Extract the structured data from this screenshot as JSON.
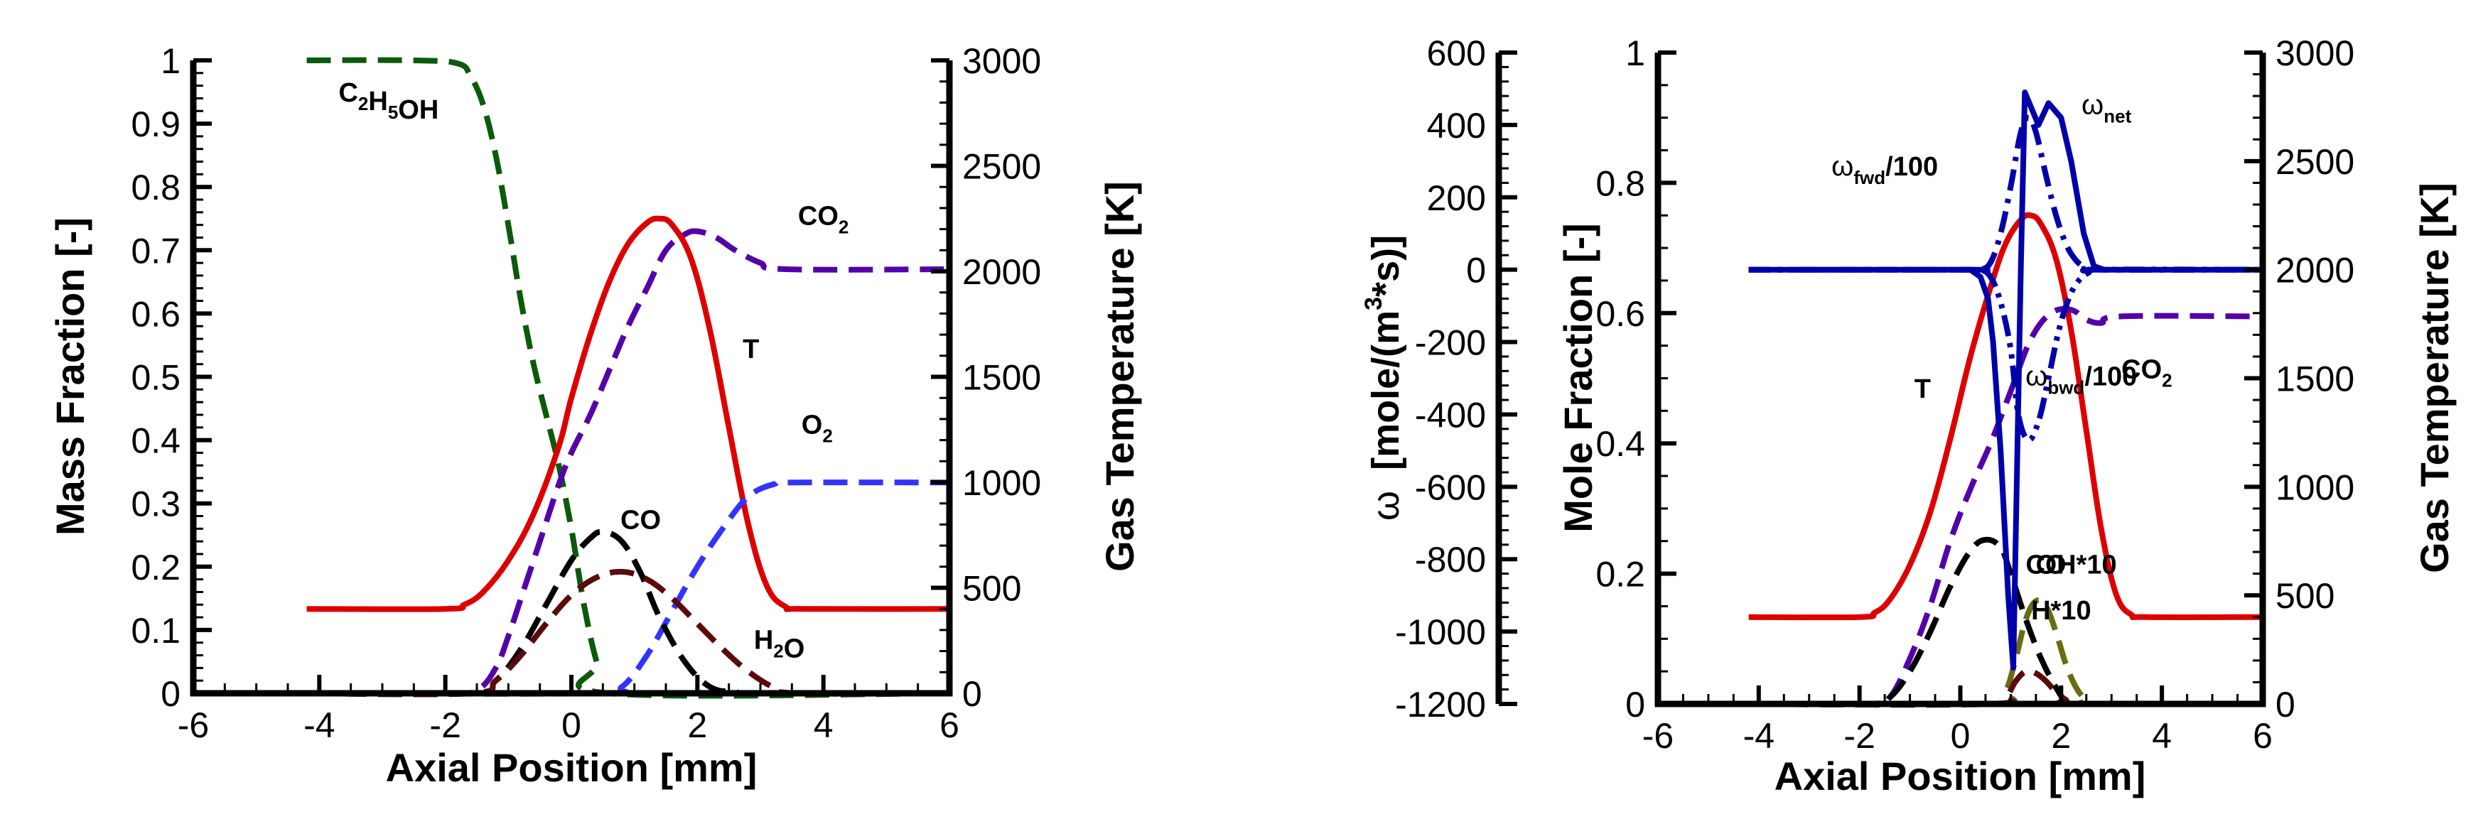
{
  "chart_data": [
    {
      "type": "line",
      "title": "",
      "xlabel": "Axial Position [mm]",
      "ylabel": "Mass Fraction [-]",
      "y2label": "Gas Temperature [K]",
      "xlim": [
        -6,
        6
      ],
      "ylim": [
        0,
        1
      ],
      "y2lim": [
        0,
        3000
      ],
      "xticks": [
        "-6",
        "-4",
        "-2",
        "0",
        "2",
        "4",
        "6"
      ],
      "yticks": [
        "0",
        "0.1",
        "0.2",
        "0.3",
        "0.4",
        "0.5",
        "0.6",
        "0.7",
        "0.8",
        "0.9",
        "1"
      ],
      "y2ticks": [
        "0",
        "500",
        "1000",
        "1500",
        "2000",
        "2500",
        "3000"
      ],
      "grid": false,
      "legend": "inline labels",
      "series": [
        {
          "name": "C2H5OH",
          "label": "C₂H₅OH",
          "axis": "left",
          "style": "dashed",
          "color": "#0a5a0a",
          "x": [
            -4.2,
            -2.5,
            -1.8,
            -1.6,
            -1.4,
            -1.2,
            -1.0,
            -0.8,
            -0.6,
            -0.4,
            -0.2,
            0.0,
            0.2,
            0.4,
            0.6,
            6.0
          ],
          "y": [
            1.0,
            1.0,
            0.995,
            0.975,
            0.93,
            0.85,
            0.74,
            0.62,
            0.52,
            0.44,
            0.36,
            0.26,
            0.14,
            0.05,
            0.0,
            0.0
          ]
        },
        {
          "name": "CO2",
          "label": "CO₂",
          "axis": "left",
          "style": "dashed",
          "color": "#5500aa",
          "x": [
            -4.2,
            -2.0,
            -1.5,
            -1.2,
            -1.0,
            -0.8,
            -0.5,
            -0.2,
            0.0,
            0.3,
            0.6,
            0.9,
            1.2,
            1.5,
            1.8,
            2.0,
            2.3,
            2.6,
            3.0,
            3.4,
            6.0
          ],
          "y": [
            0.0,
            0.0,
            0.005,
            0.04,
            0.09,
            0.15,
            0.24,
            0.33,
            0.38,
            0.44,
            0.51,
            0.58,
            0.64,
            0.7,
            0.725,
            0.73,
            0.72,
            0.7,
            0.68,
            0.67,
            0.67
          ]
        },
        {
          "name": "T",
          "label": "T",
          "axis": "right",
          "style": "solid",
          "color": "#dd0000",
          "x": [
            -4.2,
            -2.0,
            -1.7,
            -1.4,
            -1.0,
            -0.6,
            -0.2,
            0.0,
            0.3,
            0.6,
            0.9,
            1.2,
            1.4,
            1.6,
            1.9,
            2.2,
            2.5,
            2.8,
            3.1,
            3.4,
            3.7,
            6.0
          ],
          "y": [
            400,
            400,
            420,
            480,
            630,
            850,
            1170,
            1400,
            1700,
            1950,
            2130,
            2230,
            2250,
            2220,
            2060,
            1720,
            1260,
            810,
            510,
            410,
            400,
            400
          ]
        },
        {
          "name": "O2",
          "label": "O₂",
          "axis": "left",
          "style": "dashed",
          "color": "#3333ff",
          "x": [
            -4.2,
            0.4,
            0.8,
            1.2,
            1.6,
            2.0,
            2.4,
            2.8,
            3.2,
            3.6,
            6.0
          ],
          "y": [
            0.0,
            0.0,
            0.01,
            0.06,
            0.13,
            0.2,
            0.26,
            0.31,
            0.33,
            0.333,
            0.333
          ]
        },
        {
          "name": "CO",
          "label": "CO",
          "axis": "left",
          "style": "dashed",
          "color": "#000000",
          "x": [
            -4.2,
            -1.6,
            -1.2,
            -0.8,
            -0.4,
            0.0,
            0.3,
            0.5,
            0.8,
            1.1,
            1.4,
            1.8,
            2.2,
            2.6,
            3.0,
            6.0
          ],
          "y": [
            0.0,
            0.0,
            0.02,
            0.07,
            0.14,
            0.21,
            0.245,
            0.255,
            0.24,
            0.19,
            0.12,
            0.05,
            0.01,
            0.002,
            0.0,
            0.0
          ]
        },
        {
          "name": "H2O",
          "label": "H₂O",
          "axis": "left",
          "style": "dashed",
          "color": "#5a0a0a",
          "x": [
            -4.2,
            -1.6,
            -1.2,
            -0.8,
            -0.4,
            0.0,
            0.4,
            0.8,
            1.2,
            1.6,
            2.0,
            2.4,
            2.8,
            3.2,
            3.6,
            6.0
          ],
          "y": [
            0.0,
            0.0,
            0.02,
            0.06,
            0.11,
            0.155,
            0.183,
            0.192,
            0.18,
            0.15,
            0.11,
            0.07,
            0.035,
            0.01,
            0.0,
            0.0
          ]
        }
      ],
      "annotations": [
        {
          "text": "C₂H₅OH",
          "x": -2.9,
          "y": 0.935
        },
        {
          "text": "CO₂",
          "x": 4.0,
          "y": 0.74
        },
        {
          "text": "T",
          "x": 2.85,
          "y": 0.53
        },
        {
          "text": "O₂",
          "x": 3.9,
          "y": 0.41
        },
        {
          "text": "CO",
          "x": 1.1,
          "y": 0.26
        },
        {
          "text": "H₂O",
          "x": 3.3,
          "y": 0.07
        }
      ]
    },
    {
      "type": "line",
      "title": "",
      "xlabel": "Axial Position [mm]",
      "ylabel": "Mole Fraction [-]",
      "y2label": "Gas Temperature [K]",
      "y3label": "ω [mole/(m³*s)]",
      "xlim": [
        -6,
        6
      ],
      "ylim": [
        0,
        1
      ],
      "y2lim": [
        0,
        3000
      ],
      "y3lim": [
        -1200,
        600
      ],
      "xticks": [
        "-6",
        "-4",
        "-2",
        "0",
        "2",
        "4",
        "6"
      ],
      "yticks": [
        "0",
        "0.2",
        "0.4",
        "0.6",
        "0.8",
        "1"
      ],
      "y2ticks": [
        "0",
        "500",
        "1000",
        "1500",
        "2000",
        "2500",
        "3000"
      ],
      "y3ticks": [
        "-1200",
        "-1000",
        "-800",
        "-600",
        "-400",
        "-200",
        "0",
        "200",
        "400",
        "600"
      ],
      "grid": false,
      "legend": "inline labels",
      "series": [
        {
          "name": "T",
          "label": "T",
          "axis": "right",
          "style": "solid",
          "color": "#dd0000",
          "x": [
            -4.2,
            -2.0,
            -1.7,
            -1.4,
            -1.0,
            -0.6,
            -0.2,
            0.2,
            0.6,
            0.9,
            1.2,
            1.4,
            1.6,
            1.9,
            2.2,
            2.5,
            2.8,
            3.1,
            3.4,
            3.7,
            6.0
          ],
          "y": [
            400,
            400,
            420,
            480,
            640,
            880,
            1220,
            1600,
            1920,
            2120,
            2230,
            2250,
            2210,
            2050,
            1720,
            1260,
            800,
            500,
            410,
            400,
            400
          ]
        },
        {
          "name": "CO2",
          "label": "CO₂",
          "axis": "left",
          "style": "dashed",
          "color": "#5500aa",
          "x": [
            -4.2,
            -1.8,
            -1.4,
            -1.0,
            -0.6,
            -0.2,
            0.2,
            0.6,
            1.0,
            1.4,
            1.8,
            2.2,
            2.5,
            2.8,
            3.2,
            6.0
          ],
          "y": [
            0.0,
            0.0,
            0.01,
            0.07,
            0.15,
            0.25,
            0.33,
            0.4,
            0.48,
            0.56,
            0.6,
            0.605,
            0.59,
            0.585,
            0.595,
            0.595
          ]
        },
        {
          "name": "CO",
          "label": "CO",
          "axis": "left",
          "style": "dashed",
          "color": "#000000",
          "x": [
            -4.2,
            -1.8,
            -1.4,
            -1.0,
            -0.6,
            -0.2,
            0.2,
            0.5,
            0.8,
            1.0,
            1.3,
            1.6,
            1.9,
            2.1,
            2.4,
            6.0
          ],
          "y": [
            0.0,
            0.0,
            0.01,
            0.05,
            0.11,
            0.18,
            0.235,
            0.252,
            0.24,
            0.2,
            0.13,
            0.07,
            0.025,
            0.005,
            0.0,
            0.0
          ]
        },
        {
          "name": "OH*10",
          "label": "OH*10",
          "axis": "left",
          "style": "dashed",
          "color": "#6b6b10",
          "x": [
            -4.2,
            0.6,
            0.9,
            1.1,
            1.3,
            1.5,
            1.7,
            1.9,
            2.1,
            2.3,
            2.5,
            2.7,
            6.0
          ],
          "y": [
            0.0,
            0.0,
            0.02,
            0.07,
            0.13,
            0.158,
            0.15,
            0.11,
            0.06,
            0.025,
            0.006,
            0.0,
            0.0
          ]
        },
        {
          "name": "H*10",
          "label": "H*10",
          "axis": "left",
          "style": "dashed",
          "color": "#5a0a0a",
          "x": [
            -4.2,
            0.6,
            0.9,
            1.1,
            1.3,
            1.5,
            1.7,
            1.9,
            2.1,
            2.3,
            6.0
          ],
          "y": [
            0.0,
            0.0,
            0.01,
            0.035,
            0.05,
            0.047,
            0.035,
            0.018,
            0.006,
            0.0,
            0.0
          ]
        },
        {
          "name": "omega_net",
          "label": "ωnet",
          "axis": "omega",
          "style": "solid",
          "color": "#0000aa",
          "x": [
            -4.2,
            0.2,
            0.4,
            0.55,
            0.65,
            0.8,
            0.95,
            1.05,
            1.2,
            1.28,
            1.55,
            1.75,
            2.0,
            2.2,
            2.45,
            2.65,
            2.85,
            6.0
          ],
          "y": [
            0,
            0,
            -20,
            -80,
            -200,
            -500,
            -900,
            -1100,
            0,
            490,
            400,
            460,
            420,
            300,
            100,
            10,
            0,
            0
          ]
        },
        {
          "name": "omega_fwd/100",
          "label": "ωfwd/100",
          "axis": "omega",
          "style": "dashdot",
          "color": "#0000aa",
          "x": [
            -4.2,
            0.2,
            0.4,
            0.6,
            0.8,
            1.0,
            1.2,
            1.35,
            1.5,
            1.7,
            1.9,
            2.1,
            2.3,
            2.5,
            2.7,
            6.0
          ],
          "y": [
            0,
            0,
            0,
            20,
            100,
            230,
            380,
            420,
            380,
            260,
            150,
            70,
            25,
            5,
            0,
            0
          ]
        },
        {
          "name": "omega_bwd/100",
          "label": "ωbwd/100",
          "axis": "omega",
          "style": "dashdotdot",
          "color": "#0000aa",
          "x": [
            -4.2,
            0.2,
            0.4,
            0.6,
            0.8,
            1.0,
            1.15,
            1.35,
            1.55,
            1.75,
            1.95,
            2.15,
            2.35,
            2.55,
            2.75,
            6.0
          ],
          "y": [
            0,
            0,
            0,
            -20,
            -90,
            -220,
            -400,
            -470,
            -420,
            -300,
            -170,
            -80,
            -30,
            -8,
            0,
            0
          ]
        }
      ],
      "annotations": [
        {
          "text": "ωnet",
          "x": 2.9,
          "y_omega": 430
        },
        {
          "text": "ωfwd/100",
          "x": -1.5,
          "y_omega": 260
        },
        {
          "text": "ωbwd/100",
          "x": 2.4,
          "y_omega": -320
        },
        {
          "text": "CO₂",
          "x": 3.7,
          "y": 0.5
        },
        {
          "text": "T",
          "x": -0.75,
          "y": 0.47
        },
        {
          "text": "CO",
          "x": 1.7,
          "y": 0.2
        },
        {
          "text": "OH*10",
          "x": 2.3,
          "y": 0.2
        },
        {
          "text": "H*10",
          "x": 2.0,
          "y": 0.13
        }
      ]
    }
  ],
  "figure": {
    "left_panel": {
      "x_label": "Axial Position [mm]",
      "y_left_label": "Mass Fraction [-]",
      "y_right_label": "Gas Temperature [K]"
    },
    "right_panel": {
      "x_label": "Axial Position [mm]",
      "y_omega_label": "[mole/(m",
      "y_omega_sup": "3",
      "y_omega_tail": "*s)]",
      "y_omega_symbol": "ω",
      "y_left_label": "Mole Fraction [-]",
      "y_right_label": "Gas Temperature [K]"
    }
  }
}
